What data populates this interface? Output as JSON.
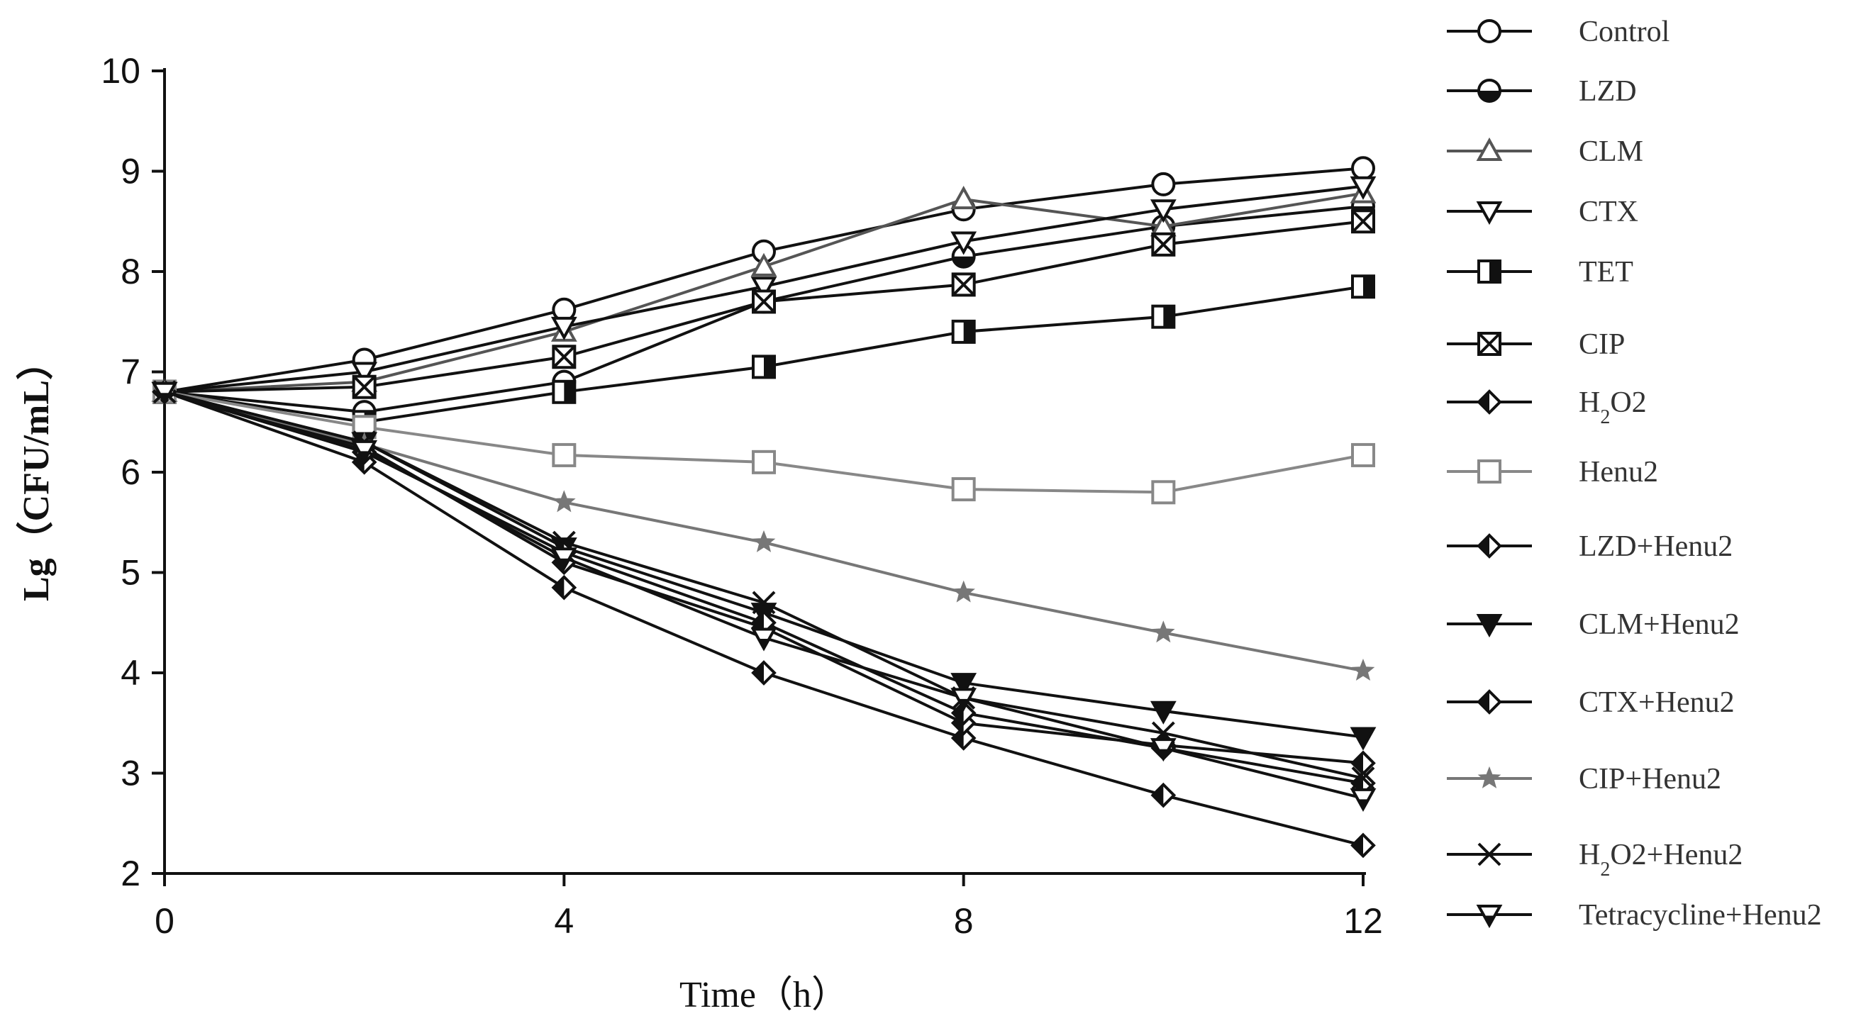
{
  "chart_data": {
    "type": "line",
    "title": "",
    "xlabel": "Time（h）",
    "ylabel": "Lg（CFU/mL）",
    "xlim": [
      0,
      12
    ],
    "ylim": [
      2,
      10
    ],
    "xticks": [
      "0",
      "4",
      "8",
      "12"
    ],
    "yticks": [
      "2",
      "3",
      "4",
      "5",
      "6",
      "7",
      "8",
      "9",
      "10"
    ],
    "x": [
      0,
      2,
      4,
      6,
      8,
      10,
      12
    ],
    "legend_position": "right",
    "series": [
      {
        "name": "Control",
        "label_main": "Control",
        "label_sub": "",
        "label_tail": "",
        "marker": "circle-open",
        "color": "#111111",
        "values": [
          6.8,
          7.12,
          7.62,
          8.2,
          8.62,
          8.87,
          9.03
        ]
      },
      {
        "name": "LZD",
        "label_main": "LZD",
        "label_sub": "",
        "label_tail": "",
        "marker": "circle-half",
        "color": "#111111",
        "values": [
          6.8,
          6.6,
          6.9,
          7.7,
          8.15,
          8.45,
          8.65
        ]
      },
      {
        "name": "CLM",
        "label_main": "CLM",
        "label_sub": "",
        "label_tail": "",
        "marker": "triangle-up-open",
        "color": "#555555",
        "values": [
          6.8,
          6.9,
          7.4,
          8.05,
          8.72,
          8.45,
          8.78
        ]
      },
      {
        "name": "CTX",
        "label_main": "CTX",
        "label_sub": "",
        "label_tail": "",
        "marker": "triangle-down-open",
        "color": "#111111",
        "values": [
          6.8,
          7.0,
          7.45,
          7.85,
          8.3,
          8.62,
          8.85
        ]
      },
      {
        "name": "TET",
        "label_main": "TET",
        "label_sub": "",
        "label_tail": "",
        "marker": "square-half",
        "color": "#111111",
        "values": [
          6.8,
          6.5,
          6.8,
          7.05,
          7.4,
          7.55,
          7.85
        ]
      },
      {
        "name": "CIP",
        "label_main": "CIP",
        "label_sub": "",
        "label_tail": "",
        "marker": "square-x",
        "color": "#111111",
        "values": [
          6.8,
          6.85,
          7.15,
          7.7,
          7.87,
          8.27,
          8.5
        ]
      },
      {
        "name": "H2O2",
        "label_main": "H",
        "label_sub": "2",
        "label_tail": "O2",
        "marker": "diamond-half",
        "color": "#111111",
        "values": [
          6.8,
          6.1,
          4.85,
          4.0,
          3.35,
          2.78,
          2.28
        ]
      },
      {
        "name": "Henu2",
        "label_main": "Henu2",
        "label_sub": "",
        "label_tail": "",
        "marker": "square-open",
        "color": "#888888",
        "values": [
          6.8,
          6.45,
          6.17,
          6.1,
          5.83,
          5.8,
          6.17
        ]
      },
      {
        "name": "LZD+Henu2",
        "label_main": "LZD+Henu2",
        "label_sub": "",
        "label_tail": "",
        "marker": "diamond-half",
        "color": "#111111",
        "values": [
          6.8,
          6.25,
          5.1,
          4.45,
          3.5,
          3.28,
          3.1
        ]
      },
      {
        "name": "CLM+Henu2",
        "label_main": "CLM+Henu2",
        "label_sub": "",
        "label_tail": "",
        "marker": "triangle-down-filled",
        "color": "#111111",
        "values": [
          6.8,
          6.3,
          5.25,
          4.6,
          3.9,
          3.62,
          3.36
        ]
      },
      {
        "name": "CTX+Henu2",
        "label_main": "CTX+Henu2",
        "label_sub": "",
        "label_tail": "",
        "marker": "diamond-half",
        "color": "#111111",
        "values": [
          6.8,
          6.2,
          5.2,
          4.5,
          3.6,
          3.25,
          2.9
        ]
      },
      {
        "name": "CIP+Henu2",
        "label_main": "CIP+Henu2",
        "label_sub": "",
        "label_tail": "",
        "marker": "star",
        "color": "#777777",
        "values": [
          6.8,
          6.28,
          5.7,
          5.3,
          4.8,
          4.4,
          4.02
        ]
      },
      {
        "name": "H2O2+Henu2",
        "label_main": "H",
        "label_sub": "2",
        "label_tail": "O2+Henu2",
        "marker": "x",
        "color": "#111111",
        "values": [
          6.8,
          6.3,
          5.3,
          4.7,
          3.75,
          3.4,
          2.95
        ]
      },
      {
        "name": "Tetracycline+Henu2",
        "label_main": "Tetracycline+Henu2",
        "label_sub": "",
        "label_tail": "",
        "marker": "triangle-down-half",
        "color": "#111111",
        "values": [
          6.8,
          6.22,
          5.15,
          4.35,
          3.75,
          3.25,
          2.75
        ]
      }
    ]
  }
}
